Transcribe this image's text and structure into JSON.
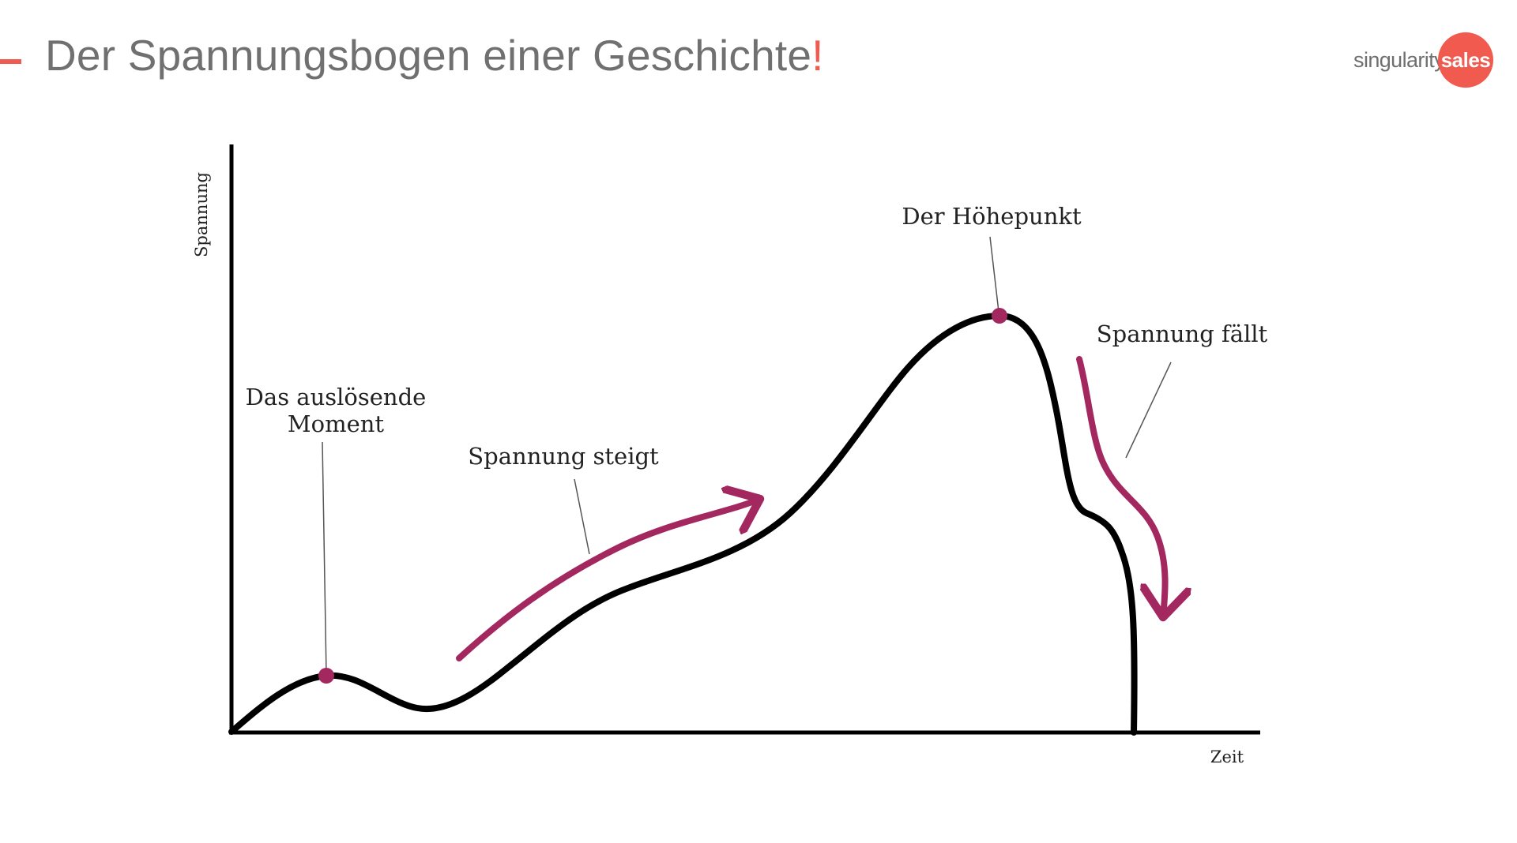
{
  "slide": {
    "title": "Der Spannungsbogen einer Geschichte",
    "title_exclamation": "!",
    "accent_color": "#f05a4f"
  },
  "logo": {
    "text": "singularity",
    "badge_text": "sales",
    "badge_color": "#f05a4f"
  },
  "diagram": {
    "y_axis_label": "Spannung",
    "x_axis_label": "Zeit",
    "annotations": {
      "inciting_moment_line1": "Das auslösende",
      "inciting_moment_line2": "Moment",
      "rising_tension": "Spannung steigt",
      "climax": "Der Höhepunkt",
      "falling_tension": "Spannung fällt"
    },
    "curve_color": "#000000",
    "arrow_color": "#a3285f",
    "marker_color": "#a3285f"
  }
}
